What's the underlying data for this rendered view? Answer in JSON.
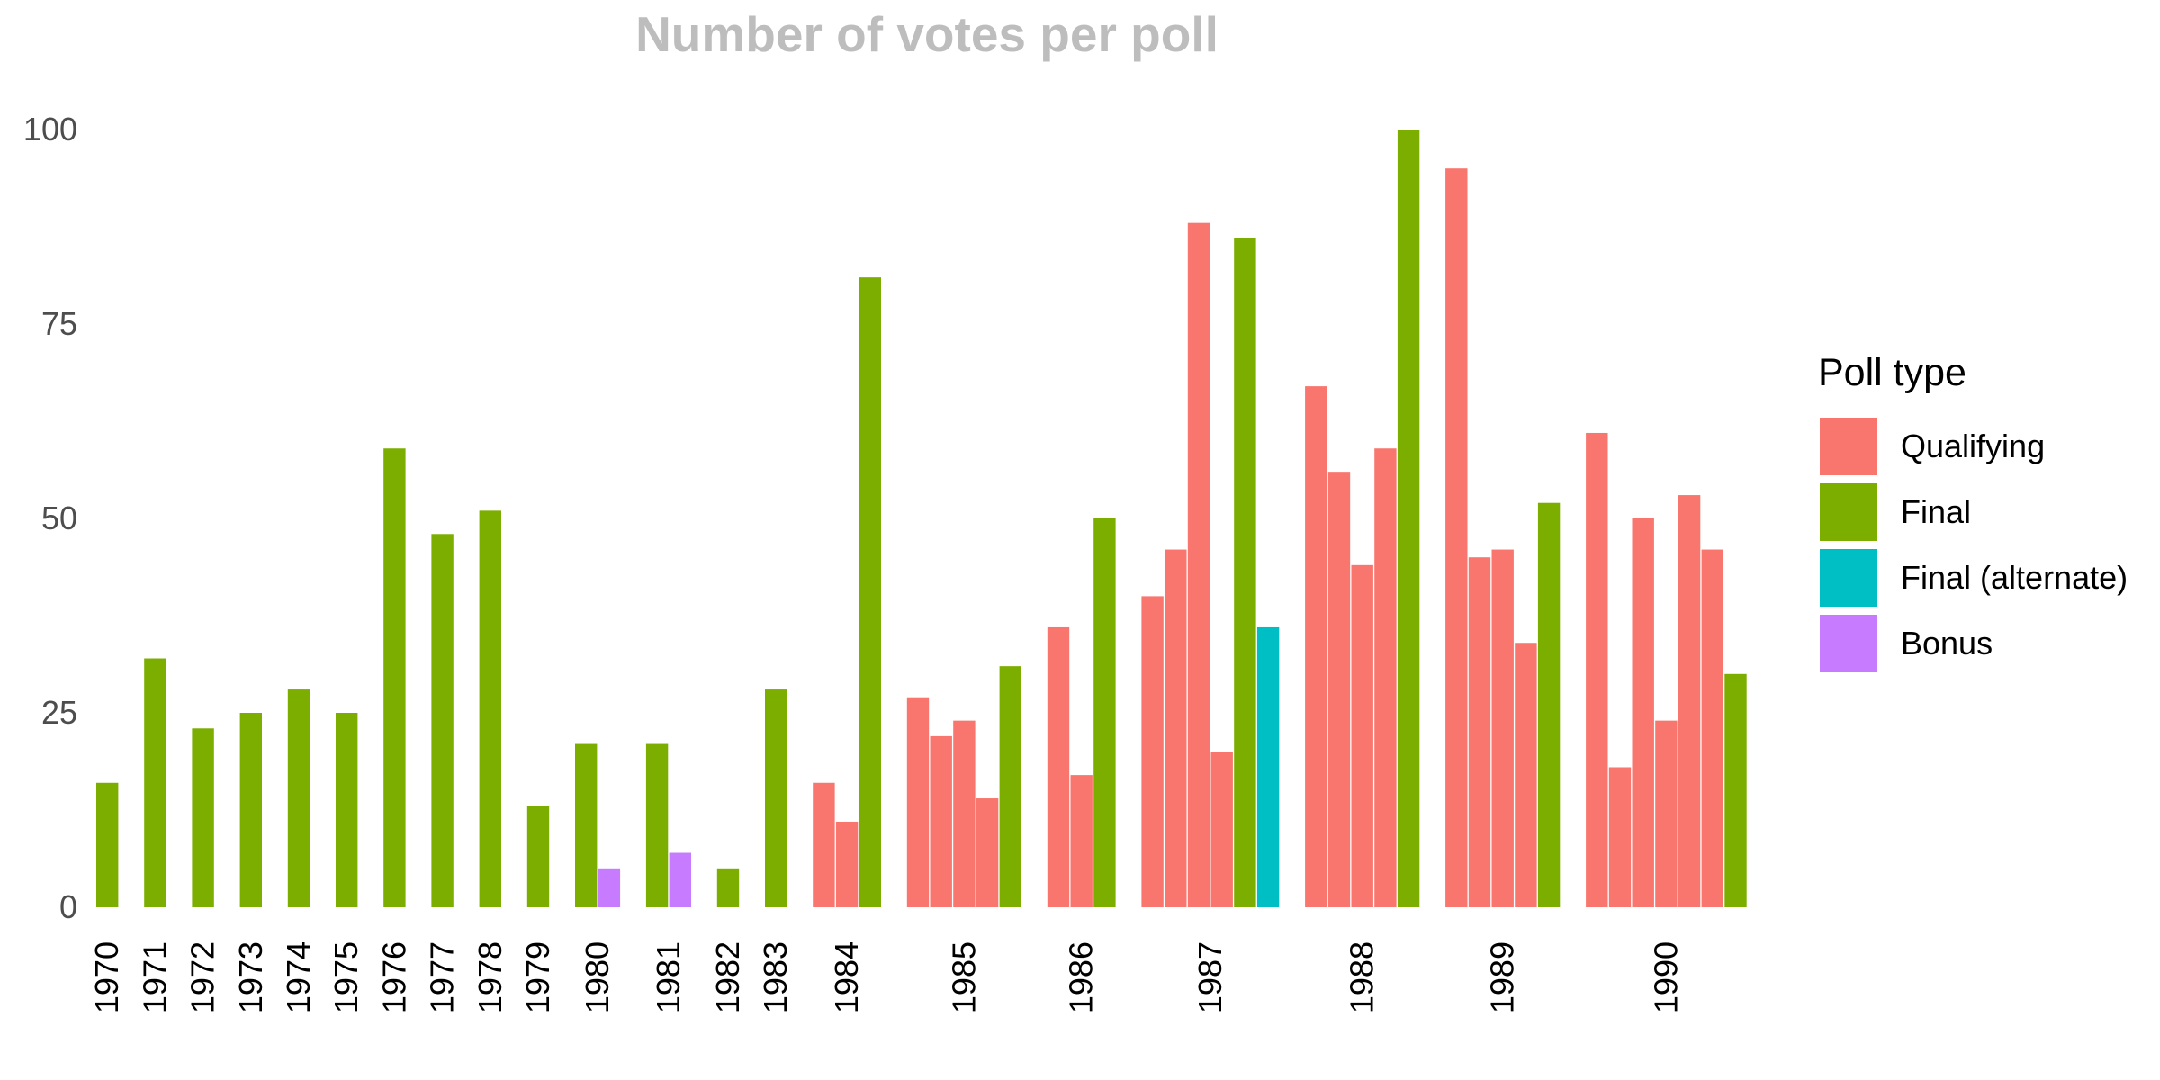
{
  "chart_data": {
    "type": "bar",
    "title": "Number of votes per poll",
    "xlabel": "",
    "ylabel": "",
    "ylim": [
      0,
      100
    ],
    "yticks": [
      0,
      25,
      50,
      75,
      100
    ],
    "grid": false,
    "legend": {
      "title": "Poll type",
      "placement": "right",
      "entries": [
        {
          "name": "Qualifying",
          "color": "#F8766D"
        },
        {
          "name": "Final",
          "color": "#7CAE00"
        },
        {
          "name": "Final (alternate)",
          "color": "#00BFC4"
        },
        {
          "name": "Bonus",
          "color": "#C77CFF"
        }
      ]
    },
    "groups": [
      {
        "year": "1970",
        "bars": [
          {
            "type": "Final",
            "value": 16
          }
        ]
      },
      {
        "year": "1971",
        "bars": [
          {
            "type": "Final",
            "value": 32
          }
        ]
      },
      {
        "year": "1972",
        "bars": [
          {
            "type": "Final",
            "value": 23
          }
        ]
      },
      {
        "year": "1973",
        "bars": [
          {
            "type": "Final",
            "value": 25
          }
        ]
      },
      {
        "year": "1974",
        "bars": [
          {
            "type": "Final",
            "value": 28
          }
        ]
      },
      {
        "year": "1975",
        "bars": [
          {
            "type": "Final",
            "value": 25
          }
        ]
      },
      {
        "year": "1976",
        "bars": [
          {
            "type": "Final",
            "value": 59
          }
        ]
      },
      {
        "year": "1977",
        "bars": [
          {
            "type": "Final",
            "value": 48
          }
        ]
      },
      {
        "year": "1978",
        "bars": [
          {
            "type": "Final",
            "value": 51
          }
        ]
      },
      {
        "year": "1979",
        "bars": [
          {
            "type": "Final",
            "value": 13
          }
        ]
      },
      {
        "year": "1980",
        "bars": [
          {
            "type": "Final",
            "value": 21
          },
          {
            "type": "Bonus",
            "value": 5
          }
        ]
      },
      {
        "year": "1981",
        "bars": [
          {
            "type": "Final",
            "value": 21
          },
          {
            "type": "Bonus",
            "value": 7
          }
        ]
      },
      {
        "year": "1982",
        "bars": [
          {
            "type": "Final",
            "value": 5
          }
        ]
      },
      {
        "year": "1983",
        "bars": [
          {
            "type": "Final",
            "value": 28
          }
        ]
      },
      {
        "year": "1984",
        "bars": [
          {
            "type": "Qualifying",
            "value": 16
          },
          {
            "type": "Qualifying",
            "value": 11
          },
          {
            "type": "Final",
            "value": 81
          }
        ]
      },
      {
        "year": "1985",
        "bars": [
          {
            "type": "Qualifying",
            "value": 27
          },
          {
            "type": "Qualifying",
            "value": 22
          },
          {
            "type": "Qualifying",
            "value": 24
          },
          {
            "type": "Qualifying",
            "value": 14
          },
          {
            "type": "Final",
            "value": 31
          }
        ]
      },
      {
        "year": "1986",
        "bars": [
          {
            "type": "Qualifying",
            "value": 36
          },
          {
            "type": "Qualifying",
            "value": 17
          },
          {
            "type": "Final",
            "value": 50
          }
        ]
      },
      {
        "year": "1987",
        "bars": [
          {
            "type": "Qualifying",
            "value": 40
          },
          {
            "type": "Qualifying",
            "value": 46
          },
          {
            "type": "Qualifying",
            "value": 88
          },
          {
            "type": "Qualifying",
            "value": 20
          },
          {
            "type": "Final",
            "value": 86
          },
          {
            "type": "Final (alternate)",
            "value": 36
          }
        ]
      },
      {
        "year": "1988",
        "bars": [
          {
            "type": "Qualifying",
            "value": 67
          },
          {
            "type": "Qualifying",
            "value": 56
          },
          {
            "type": "Qualifying",
            "value": 44
          },
          {
            "type": "Qualifying",
            "value": 59
          },
          {
            "type": "Final",
            "value": 100
          }
        ]
      },
      {
        "year": "1989",
        "bars": [
          {
            "type": "Qualifying",
            "value": 95
          },
          {
            "type": "Qualifying",
            "value": 45
          },
          {
            "type": "Qualifying",
            "value": 46
          },
          {
            "type": "Qualifying",
            "value": 34
          },
          {
            "type": "Final",
            "value": 52
          }
        ]
      },
      {
        "year": "1990",
        "bars": [
          {
            "type": "Qualifying",
            "value": 61
          },
          {
            "type": "Qualifying",
            "value": 18
          },
          {
            "type": "Qualifying",
            "value": 50
          },
          {
            "type": "Qualifying",
            "value": 24
          },
          {
            "type": "Qualifying",
            "value": 53
          },
          {
            "type": "Qualifying",
            "value": 46
          },
          {
            "type": "Final",
            "value": 30
          }
        ]
      }
    ]
  }
}
